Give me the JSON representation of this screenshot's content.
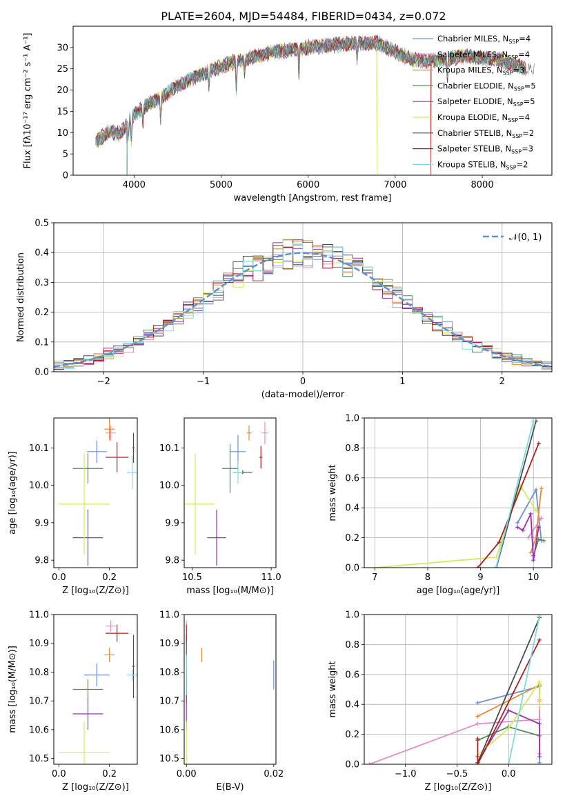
{
  "figure_title": "PLATE=2604, MJD=54484, FIBERID=0434, z=0.072",
  "models": [
    {
      "name": "Chabrier MILES",
      "n": "4",
      "color": "#6a8fd8"
    },
    {
      "name": "Salpeter MILES",
      "n": "4",
      "color": "#e88bc4"
    },
    {
      "name": "Kroupa MILES",
      "n": "3",
      "color": "#e8892f"
    },
    {
      "name": "Chabrier ELODIE",
      "n": "5",
      "color": "#4f8a55"
    },
    {
      "name": "Salpeter ELODIE",
      "n": "5",
      "color": "#9b2fb5"
    },
    {
      "name": "Kroupa ELODIE",
      "n": "4",
      "color": "#d6e85a"
    },
    {
      "name": "Chabrier STELIB",
      "n": "2",
      "color": "#4a4a4a"
    },
    {
      "name": "Salpeter STELIB",
      "n": "3",
      "color": "#b01c1c"
    },
    {
      "name": "Kroupa STELIB",
      "n": "2",
      "color": "#7fdbe0"
    }
  ],
  "chart_data": [
    {
      "id": "spectrum",
      "type": "line",
      "xlabel": "wavelength [Angstrom, rest frame]",
      "ylabel": "Flux [fλ10⁻¹⁷ erg cm⁻² s⁻¹ A⁻¹]",
      "xlim": [
        3300,
        8800
      ],
      "ylim": [
        0,
        35
      ],
      "xticks": [
        4000,
        5000,
        6000,
        7000,
        8000
      ],
      "yticks": [
        0,
        5,
        10,
        15,
        20,
        25,
        30
      ],
      "legend_position": "right",
      "continuum": [
        [
          3560,
          8
        ],
        [
          3700,
          10
        ],
        [
          3850,
          10
        ],
        [
          3950,
          13
        ],
        [
          4100,
          16
        ],
        [
          4300,
          18
        ],
        [
          4500,
          21
        ],
        [
          4800,
          24
        ],
        [
          5000,
          25.5
        ],
        [
          5200,
          27
        ],
        [
          5500,
          28.5
        ],
        [
          6000,
          30
        ],
        [
          6500,
          31
        ],
        [
          6800,
          31
        ],
        [
          7000,
          29
        ],
        [
          7200,
          27
        ],
        [
          7500,
          27
        ],
        [
          7800,
          28
        ],
        [
          8200,
          27
        ],
        [
          8500,
          25
        ]
      ],
      "absorption": [
        [
          3934,
          4
        ],
        [
          3969,
          5
        ],
        [
          4102,
          4
        ],
        [
          4305,
          5
        ],
        [
          4861,
          4
        ],
        [
          5175,
          7
        ],
        [
          5270,
          3
        ],
        [
          5894,
          6
        ],
        [
          6563,
          4
        ],
        [
          7600,
          4
        ]
      ],
      "glitches": [
        [
          3920,
          "all",
          0
        ],
        [
          6790,
          "Kroupa ELODIE",
          0
        ],
        [
          7410,
          "Salpeter STELIB",
          0
        ]
      ],
      "grid": false
    },
    {
      "id": "residuals",
      "type": "histogram",
      "xlabel": "(data-model)/error",
      "ylabel": "Normed distribution",
      "xlim": [
        -2.5,
        2.5
      ],
      "ylim": [
        0,
        0.5
      ],
      "xticks": [
        -2,
        -1,
        0,
        1,
        2
      ],
      "yticks": [
        0.0,
        0.1,
        0.2,
        0.3,
        0.4,
        0.5
      ],
      "bin_width": 0.1,
      "reference_curve": "𝒩(0, 1)",
      "grid": true
    },
    {
      "id": "age_vs_Z",
      "type": "scatter",
      "xlabel": "Z [log₁₀(Z/Z⊙)]",
      "ylabel": "age  [log₁₀(age/yr)]",
      "xlim": [
        -0.02,
        0.31
      ],
      "ylim": [
        9.78,
        10.18
      ],
      "xticks": [
        0.0,
        0.2
      ],
      "yticks": [
        9.8,
        9.9,
        10.0,
        10.1
      ],
      "points": [
        {
          "model": "Chabrier MILES",
          "x": 0.15,
          "y": 10.09,
          "xerr": 0.04,
          "yerr": 0.03
        },
        {
          "model": "Salpeter MILES",
          "x": 0.205,
          "y": 10.14,
          "xerr": 0.02,
          "yerr": 0.02
        },
        {
          "model": "Kroupa MILES",
          "x": 0.2,
          "y": 10.15,
          "xerr": 0.02,
          "yerr": 0.03
        },
        {
          "model": "Chabrier ELODIE",
          "x": 0.115,
          "y": 10.045,
          "xerr": 0.06,
          "yerr": 0.04
        },
        {
          "model": "Salpeter ELODIE",
          "x": 0.115,
          "y": 9.86,
          "xerr": 0.06,
          "yerr": 0.075
        },
        {
          "model": "Kroupa ELODIE",
          "x": 0.1,
          "y": 9.95,
          "xerr": 0.1,
          "yerr": 0.135
        },
        {
          "model": "Chabrier STELIB",
          "x": 0.295,
          "y": 10.1,
          "xerr": 0.005,
          "yerr": 0.04
        },
        {
          "model": "Salpeter STELIB",
          "x": 0.23,
          "y": 10.075,
          "xerr": 0.045,
          "yerr": 0.04
        },
        {
          "model": "Kroupa STELIB",
          "x": 0.29,
          "y": 10.035,
          "xerr": 0.02,
          "yerr": 0.045
        }
      ]
    },
    {
      "id": "age_vs_mass",
      "type": "scatter",
      "xlabel": "mass [log₁₀(M/M⊙)]",
      "ylabel": "",
      "xlim": [
        10.45,
        11.03
      ],
      "ylim": [
        9.78,
        10.18
      ],
      "xticks": [
        10.5,
        11.0
      ],
      "yticks": [
        9.8,
        9.9,
        10.0,
        10.1
      ],
      "points": [
        {
          "model": "Chabrier MILES",
          "x": 10.79,
          "y": 10.09,
          "xerr": 0.05,
          "yerr": 0.045
        },
        {
          "model": "Salpeter MILES",
          "x": 10.96,
          "y": 10.14,
          "xerr": 0.02,
          "yerr": 0.03
        },
        {
          "model": "Kroupa MILES",
          "x": 10.86,
          "y": 10.14,
          "xerr": 0.015,
          "yerr": 0.02
        },
        {
          "model": "Chabrier ELODIE",
          "x": 10.74,
          "y": 10.045,
          "xerr": 0.05,
          "yerr": 0.065
        },
        {
          "model": "Salpeter ELODIE",
          "x": 10.655,
          "y": 9.86,
          "xerr": 0.06,
          "yerr": 0.075
        },
        {
          "model": "Kroupa ELODIE",
          "x": 10.52,
          "y": 9.95,
          "xerr": 0.12,
          "yerr": 0.135
        },
        {
          "model": "Chabrier STELIB",
          "x": 10.82,
          "y": 10.035,
          "xerr": 0.06,
          "yerr": 0.005
        },
        {
          "model": "Salpeter STELIB",
          "x": 10.935,
          "y": 10.075,
          "xerr": 0.01,
          "yerr": 0.03
        },
        {
          "model": "Kroupa STELIB",
          "x": 10.79,
          "y": 10.035,
          "xerr": 0.03,
          "yerr": 0.03
        }
      ]
    },
    {
      "id": "weight_vs_age",
      "type": "line",
      "xlabel": "age  [log₁₀(age/yr)]",
      "ylabel": "mass weight",
      "xlim": [
        6.8,
        10.35
      ],
      "ylim": [
        0,
        1.0
      ],
      "xticks": [
        7,
        8,
        9,
        10
      ],
      "yticks": [
        0.0,
        0.2,
        0.4,
        0.6,
        0.8,
        1.0
      ],
      "grid": true,
      "series": [
        {
          "model": "Chabrier MILES",
          "points": [
            [
              9.7,
              0.3
            ],
            [
              10.05,
              0.52
            ],
            [
              10.15,
              0.18
            ]
          ]
        },
        {
          "model": "Salpeter MILES",
          "points": [
            [
              9.9,
              0.2
            ],
            [
              10.15,
              0.33
            ]
          ]
        },
        {
          "model": "Kroupa MILES",
          "points": [
            [
              9.95,
              0.1
            ],
            [
              10.05,
              0.2
            ],
            [
              10.15,
              0.53
            ]
          ]
        },
        {
          "model": "Chabrier ELODIE",
          "points": [
            [
              10.0,
              0.08
            ],
            [
              10.1,
              0.19
            ],
            [
              10.2,
              0.18
            ]
          ]
        },
        {
          "model": "Salpeter ELODIE",
          "points": [
            [
              9.7,
              0.27
            ],
            [
              9.8,
              0.25
            ],
            [
              9.95,
              0.36
            ],
            [
              10.0,
              0.05
            ],
            [
              10.1,
              0.27
            ]
          ]
        },
        {
          "model": "Kroupa ELODIE",
          "points": [
            [
              7.0,
              0.0
            ],
            [
              9.3,
              0.07
            ],
            [
              9.75,
              0.55
            ],
            [
              10.05,
              0.38
            ]
          ]
        },
        {
          "model": "Chabrier STELIB",
          "points": [
            [
              9.3,
              0.0
            ],
            [
              10.05,
              0.98
            ]
          ]
        },
        {
          "model": "Salpeter STELIB",
          "points": [
            [
              8.95,
              0.0
            ],
            [
              9.35,
              0.17
            ],
            [
              10.1,
              0.83
            ]
          ]
        },
        {
          "model": "Kroupa STELIB",
          "points": [
            [
              9.3,
              0.01
            ],
            [
              10.0,
              0.98
            ]
          ]
        }
      ]
    },
    {
      "id": "mass_vs_Z",
      "type": "scatter",
      "xlabel": "Z [log₁₀(Z/Z⊙)]",
      "ylabel": "mass [log₁₀(M/M⊙)]",
      "xlim": [
        -0.02,
        0.31
      ],
      "ylim": [
        10.48,
        11.0
      ],
      "xticks": [
        0.0,
        0.2
      ],
      "yticks": [
        10.5,
        10.6,
        10.7,
        10.8,
        10.9,
        11.0
      ],
      "points": [
        {
          "model": "Chabrier MILES",
          "x": 0.15,
          "y": 10.79,
          "xerr": 0.05,
          "yerr": 0.04
        },
        {
          "model": "Salpeter MILES",
          "x": 0.205,
          "y": 10.96,
          "xerr": 0.02,
          "yerr": 0.02
        },
        {
          "model": "Kroupa MILES",
          "x": 0.2,
          "y": 10.86,
          "xerr": 0.02,
          "yerr": 0.025
        },
        {
          "model": "Chabrier ELODIE",
          "x": 0.115,
          "y": 10.74,
          "xerr": 0.06,
          "yerr": 0.035
        },
        {
          "model": "Salpeter ELODIE",
          "x": 0.115,
          "y": 10.655,
          "xerr": 0.06,
          "yerr": 0.055
        },
        {
          "model": "Kroupa ELODIE",
          "x": 0.1,
          "y": 10.52,
          "xerr": 0.1,
          "yerr": 0.11
        },
        {
          "model": "Chabrier STELIB",
          "x": 0.295,
          "y": 10.82,
          "xerr": 0.005,
          "yerr": 0.11
        },
        {
          "model": "Salpeter STELIB",
          "x": 0.23,
          "y": 10.935,
          "xerr": 0.045,
          "yerr": 0.03
        },
        {
          "model": "Kroupa STELIB",
          "x": 0.29,
          "y": 10.79,
          "xerr": 0.02,
          "yerr": 0.02
        }
      ]
    },
    {
      "id": "mass_vs_ebv",
      "type": "scatter",
      "xlabel": "E(B-V)",
      "ylabel": "",
      "xlim": [
        -0.0005,
        0.0205
      ],
      "ylim": [
        10.48,
        11.0
      ],
      "xticks": [
        0.0,
        0.02
      ],
      "yticks": [
        10.5,
        10.6,
        10.7,
        10.8,
        10.9,
        11.0
      ],
      "points": [
        {
          "model": "Chabrier MILES",
          "x": 0.02,
          "y": 10.79,
          "xerr": 0.0,
          "yerr": 0.05
        },
        {
          "model": "Salpeter MILES",
          "x": 0.0,
          "y": 10.96,
          "xerr": 0.0,
          "yerr": 0.02
        },
        {
          "model": "Kroupa MILES",
          "x": 0.0035,
          "y": 10.86,
          "xerr": 0.0,
          "yerr": 0.025
        },
        {
          "model": "Chabrier ELODIE",
          "x": 0.0,
          "y": 10.74,
          "xerr": 0.0,
          "yerr": 0.05
        },
        {
          "model": "Salpeter ELODIE",
          "x": 0.0,
          "y": 10.655,
          "xerr": 0.0,
          "yerr": 0.055
        },
        {
          "model": "Kroupa ELODIE",
          "x": 0.0,
          "y": 10.52,
          "xerr": 0.0,
          "yerr": 0.11
        },
        {
          "model": "Chabrier STELIB",
          "x": 0.0,
          "y": 10.82,
          "xerr": 0.0,
          "yerr": 0.11
        },
        {
          "model": "Salpeter STELIB",
          "x": 0.0,
          "y": 10.935,
          "xerr": 0.0,
          "yerr": 0.03
        },
        {
          "model": "Kroupa STELIB",
          "x": 0.0,
          "y": 10.79,
          "xerr": 0.0,
          "yerr": 0.07
        }
      ]
    },
    {
      "id": "weight_vs_Z",
      "type": "line",
      "xlabel": "Z [log₁₀(Z/Z⊙)]",
      "ylabel": "mass weight",
      "xlim": [
        -1.4,
        0.42
      ],
      "ylim": [
        0,
        1.0
      ],
      "xticks": [
        -1.0,
        -0.5,
        0.0
      ],
      "yticks": [
        0.0,
        0.2,
        0.4,
        0.6,
        0.8,
        1.0
      ],
      "grid": true,
      "series": [
        {
          "model": "Chabrier MILES",
          "points": [
            [
              -0.3,
              0.41
            ],
            [
              0.3,
              0.52
            ],
            [
              0.3,
              0.07
            ],
            [
              0.3,
              0.01
            ]
          ]
        },
        {
          "model": "Salpeter MILES",
          "points": [
            [
              -1.35,
              0.0
            ],
            [
              -0.3,
              0.27
            ],
            [
              0.3,
              0.3
            ],
            [
              0.3,
              0.42
            ]
          ]
        },
        {
          "model": "Kroupa MILES",
          "points": [
            [
              -0.3,
              0.32
            ],
            [
              0.3,
              0.53
            ],
            [
              0.3,
              0.43
            ]
          ]
        },
        {
          "model": "Chabrier ELODIE",
          "points": [
            [
              -0.3,
              0.16
            ],
            [
              0.0,
              0.25
            ],
            [
              0.3,
              0.19
            ]
          ]
        },
        {
          "model": "Salpeter ELODIE",
          "points": [
            [
              -0.3,
              0.05
            ],
            [
              -0.3,
              0.01
            ],
            [
              0.0,
              0.36
            ],
            [
              0.3,
              0.27
            ],
            [
              0.3,
              0.05
            ]
          ]
        },
        {
          "model": "Kroupa ELODIE",
          "points": [
            [
              -0.3,
              0.01
            ],
            [
              -0.3,
              0.06
            ],
            [
              0.0,
              0.24
            ],
            [
              0.3,
              0.55
            ],
            [
              0.3,
              0.38
            ]
          ]
        },
        {
          "model": "Chabrier STELIB",
          "points": [
            [
              -0.3,
              0.01
            ],
            [
              0.3,
              0.98
            ]
          ]
        },
        {
          "model": "Salpeter STELIB",
          "points": [
            [
              -0.3,
              0.17
            ],
            [
              -0.3,
              0.0
            ],
            [
              0.3,
              0.83
            ]
          ]
        },
        {
          "model": "Kroupa STELIB",
          "points": [
            [
              0.0,
              0.0
            ],
            [
              0.3,
              0.99
            ]
          ]
        }
      ]
    }
  ]
}
